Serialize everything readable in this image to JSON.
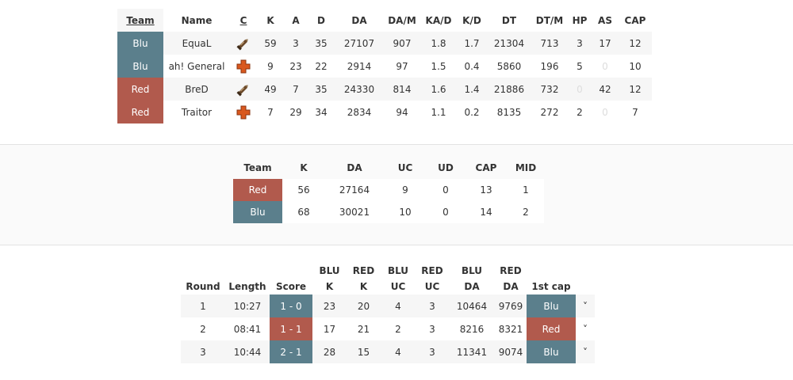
{
  "players": {
    "headers": [
      "Team",
      "Name",
      "C",
      "K",
      "A",
      "D",
      "DA",
      "DA/M",
      "KA/D",
      "K/D",
      "DT",
      "DT/M",
      "HP",
      "AS",
      "CAP"
    ],
    "rows": [
      {
        "team": "Blu",
        "name": "EquaL",
        "class_icon": "rocket-icon",
        "k": "59",
        "a": "3",
        "d": "35",
        "da": "27107",
        "dam": "907",
        "kad": "1.8",
        "kd": "1.7",
        "dt": "21304",
        "dtm": "713",
        "hp": "3",
        "as": "17",
        "cap": "12"
      },
      {
        "team": "Blu",
        "name": "ah! General",
        "class_icon": "medic-cross-icon",
        "k": "9",
        "a": "23",
        "d": "22",
        "da": "2914",
        "dam": "97",
        "kad": "1.5",
        "kd": "0.4",
        "dt": "5860",
        "dtm": "196",
        "hp": "5",
        "as": "0",
        "cap": "10"
      },
      {
        "team": "Red",
        "name": "BreD",
        "class_icon": "rocket-icon",
        "k": "49",
        "a": "7",
        "d": "35",
        "da": "24330",
        "dam": "814",
        "kad": "1.6",
        "kd": "1.4",
        "dt": "21886",
        "dtm": "732",
        "hp": "0",
        "as": "42",
        "cap": "12"
      },
      {
        "team": "Red",
        "name": "Traitor",
        "class_icon": "medic-cross-icon",
        "k": "7",
        "a": "29",
        "d": "34",
        "da": "2834",
        "dam": "94",
        "kad": "1.1",
        "kd": "0.2",
        "dt": "8135",
        "dtm": "272",
        "hp": "2",
        "as": "0",
        "cap": "7"
      }
    ]
  },
  "teams": {
    "headers": [
      "Team",
      "K",
      "DA",
      "UC",
      "UD",
      "CAP",
      "MID"
    ],
    "rows": [
      {
        "team": "Red",
        "k": "56",
        "da": "27164",
        "uc": "9",
        "ud": "0",
        "cap": "13",
        "mid": "1"
      },
      {
        "team": "Blu",
        "k": "68",
        "da": "30021",
        "uc": "10",
        "ud": "0",
        "cap": "14",
        "mid": "2"
      }
    ]
  },
  "rounds": {
    "headers": [
      "Round",
      "Length",
      "Score",
      "BLU K",
      "RED K",
      "BLU UC",
      "RED UC",
      "BLU DA",
      "RED DA",
      "1st cap"
    ],
    "header_lines": [
      [
        "Round"
      ],
      [
        "Length"
      ],
      [
        "Score"
      ],
      [
        "BLU",
        "K"
      ],
      [
        "RED",
        "K"
      ],
      [
        "BLU",
        "UC"
      ],
      [
        "RED",
        "UC"
      ],
      [
        "BLU",
        "DA"
      ],
      [
        "RED",
        "DA"
      ],
      [
        "1st cap"
      ]
    ],
    "rows": [
      {
        "round": "1",
        "length": "10:27",
        "score": "1 - 0",
        "score_team": "Blu",
        "blu_k": "23",
        "red_k": "20",
        "blu_uc": "4",
        "red_uc": "3",
        "blu_da": "10464",
        "red_da": "9769",
        "first_cap": "Blu",
        "expand": "˅"
      },
      {
        "round": "2",
        "length": "08:41",
        "score": "1 - 1",
        "score_team": "Red",
        "blu_k": "17",
        "red_k": "21",
        "blu_uc": "2",
        "red_uc": "3",
        "blu_da": "8216",
        "red_da": "8321",
        "first_cap": "Red",
        "expand": "˅"
      },
      {
        "round": "3",
        "length": "10:44",
        "score": "2 - 1",
        "score_team": "Blu",
        "blu_k": "28",
        "red_k": "15",
        "blu_uc": "4",
        "red_uc": "3",
        "blu_da": "11341",
        "red_da": "9074",
        "first_cap": "Blu",
        "expand": "˅"
      }
    ]
  },
  "colors": {
    "blu": "#5b7f8c",
    "red": "#b15a4d",
    "muted": "#dddddd"
  }
}
